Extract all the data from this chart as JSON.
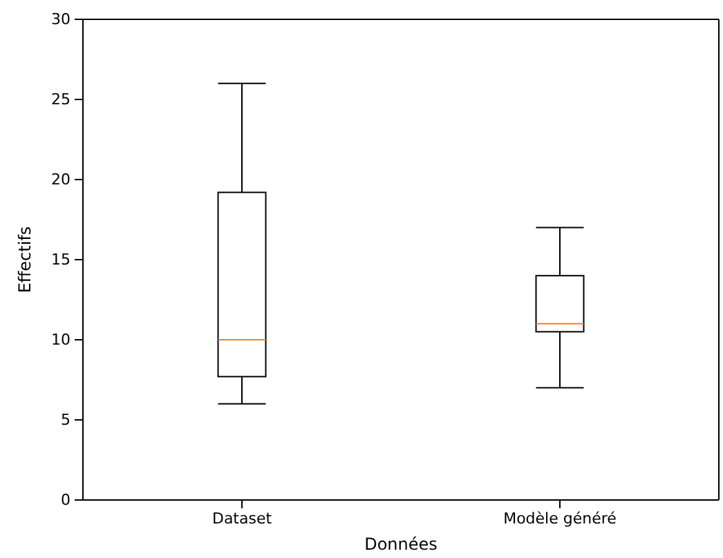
{
  "chart_data": {
    "type": "box",
    "xlabel": "Données",
    "ylabel": "Effectifs",
    "categories": [
      "Dataset",
      "Modèle généré"
    ],
    "boxes": [
      {
        "low": 6,
        "q1": 7.7,
        "median": 10,
        "q3": 19.2,
        "high": 26
      },
      {
        "low": 7,
        "q1": 10.5,
        "median": 11,
        "q3": 14,
        "high": 17
      }
    ],
    "color": "#000000",
    "ylim": [
      0,
      30
    ],
    "yticks": [
      0,
      5,
      10,
      15,
      20,
      25,
      30
    ],
    "grid": false
  }
}
